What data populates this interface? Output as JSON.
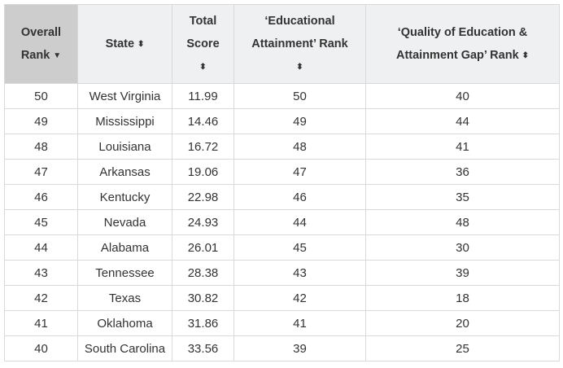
{
  "table": {
    "headers": {
      "rank_line1": "Overall",
      "rank_line2": "Rank",
      "state": "State",
      "score_line1": "Total",
      "score_line2": "Score",
      "edu_line1": "‘Educational",
      "edu_line2": "Attainment’ Rank",
      "qual_line1": "‘Quality of Education &",
      "qual_line2": "Attainment Gap’ Rank"
    },
    "icons": {
      "sorted_desc": "▼",
      "sortable": "⬍"
    },
    "rows": [
      {
        "rank": "50",
        "state": "West Virginia",
        "score": "11.99",
        "edu": "50",
        "qual": "40"
      },
      {
        "rank": "49",
        "state": "Mississippi",
        "score": "14.46",
        "edu": "49",
        "qual": "44"
      },
      {
        "rank": "48",
        "state": "Louisiana",
        "score": "16.72",
        "edu": "48",
        "qual": "41"
      },
      {
        "rank": "47",
        "state": "Arkansas",
        "score": "19.06",
        "edu": "47",
        "qual": "36"
      },
      {
        "rank": "46",
        "state": "Kentucky",
        "score": "22.98",
        "edu": "46",
        "qual": "35"
      },
      {
        "rank": "45",
        "state": "Nevada",
        "score": "24.93",
        "edu": "44",
        "qual": "48"
      },
      {
        "rank": "44",
        "state": "Alabama",
        "score": "26.01",
        "edu": "45",
        "qual": "30"
      },
      {
        "rank": "43",
        "state": "Tennessee",
        "score": "28.38",
        "edu": "43",
        "qual": "39"
      },
      {
        "rank": "42",
        "state": "Texas",
        "score": "30.82",
        "edu": "42",
        "qual": "18"
      },
      {
        "rank": "41",
        "state": "Oklahoma",
        "score": "31.86",
        "edu": "41",
        "qual": "20"
      },
      {
        "rank": "40",
        "state": "South Carolina",
        "score": "33.56",
        "edu": "39",
        "qual": "25"
      }
    ]
  },
  "colors": {
    "header_bg": "#eef0f2",
    "sorted_header_bg": "#cdcdcd",
    "border": "#d9d9d9",
    "text": "#333333"
  }
}
